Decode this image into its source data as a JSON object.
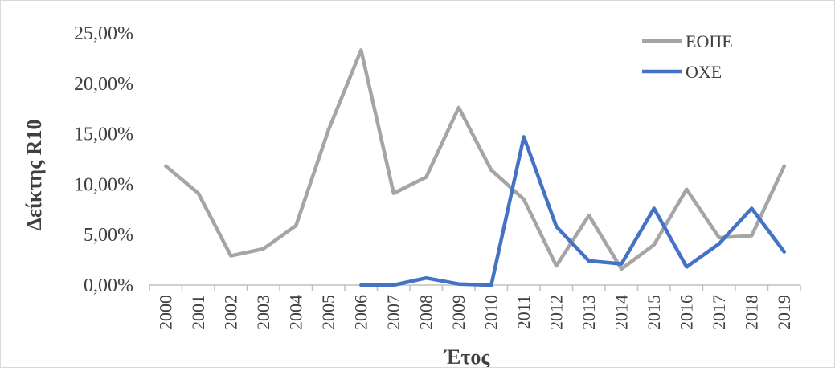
{
  "chart_data": {
    "type": "line",
    "title": "",
    "xlabel": "Έτος",
    "ylabel": "Δείκτης R10",
    "categories": [
      "2000",
      "2001",
      "2002",
      "2003",
      "2004",
      "2005",
      "2006",
      "2007",
      "2008",
      "2009",
      "2010",
      "2011",
      "2012",
      "2013",
      "2014",
      "2015",
      "2016",
      "2017",
      "2018",
      "2019"
    ],
    "ylim": [
      0,
      25
    ],
    "yticks": [
      "0,00%",
      "5,00%",
      "10,00%",
      "15,00%",
      "20,00%",
      "25,00%"
    ],
    "grid": false,
    "legend_position": "top-right",
    "series": [
      {
        "name": "ΕΟΠΕ",
        "color": "#a5a5a5",
        "values": [
          11.8,
          9.1,
          2.9,
          3.6,
          5.9,
          15.4,
          23.3,
          9.1,
          10.7,
          17.6,
          11.4,
          8.5,
          1.9,
          6.9,
          1.6,
          4.0,
          9.5,
          4.7,
          4.9,
          11.8
        ]
      },
      {
        "name": "ΟΧΕ",
        "color": "#4472c4",
        "values": [
          null,
          null,
          null,
          null,
          null,
          null,
          0.0,
          0.0,
          0.7,
          0.1,
          0.0,
          14.7,
          5.8,
          2.4,
          2.1,
          7.6,
          1.8,
          4.1,
          7.6,
          3.3
        ]
      }
    ]
  }
}
